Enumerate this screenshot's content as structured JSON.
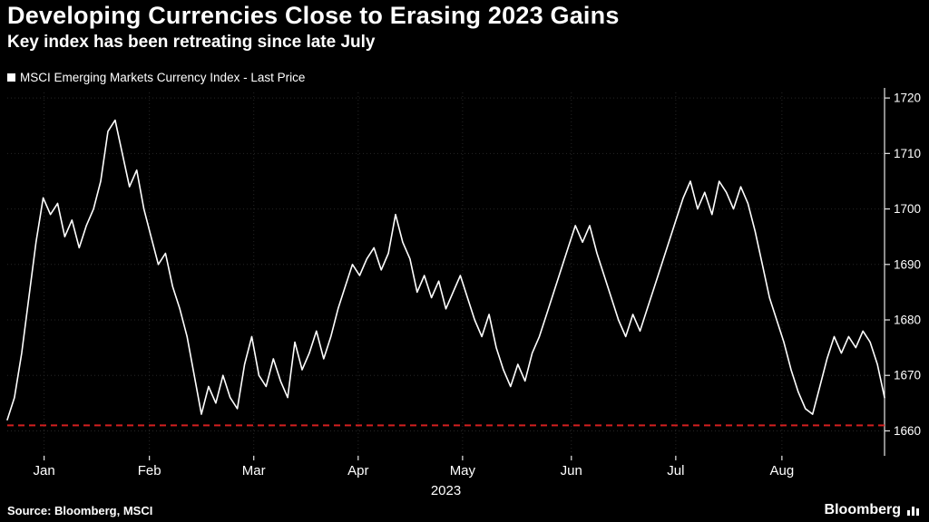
{
  "header": {
    "title": "Developing Currencies Close to Erasing 2023 Gains",
    "subtitle": "Key index has been retreating since late July"
  },
  "legend": {
    "label": "MSCI Emerging Markets Currency Index - Last Price"
  },
  "footer": {
    "source": "Source: Bloomberg, MSCI",
    "brand": "Bloomberg"
  },
  "chart_data": {
    "type": "line",
    "title": "Developing Currencies Close to Erasing 2023 Gains",
    "subtitle": "Key index has been retreating since late July",
    "xlabel": "2023",
    "ylabel": "",
    "year_label": "2023",
    "ylim": [
      1655.5,
      1721
    ],
    "yticks": [
      1660,
      1670,
      1680,
      1690,
      1700,
      1710,
      1720
    ],
    "xticks": [
      {
        "label": "Jan",
        "pos": 0.042
      },
      {
        "label": "Feb",
        "pos": 0.162
      },
      {
        "label": "Mar",
        "pos": 0.281
      },
      {
        "label": "Apr",
        "pos": 0.4
      },
      {
        "label": "May",
        "pos": 0.519
      },
      {
        "label": "Jun",
        "pos": 0.643
      },
      {
        "label": "Jul",
        "pos": 0.762
      },
      {
        "label": "Aug",
        "pos": 0.883
      }
    ],
    "reference_line": 1661,
    "legend_position": "top-left",
    "grid": true,
    "colors": {
      "background": "#000000",
      "line": "#ffffff",
      "reference": "#d21f1f",
      "axis": "#e8e8e8",
      "text": "#ffffff",
      "grid": "#262626"
    },
    "series": [
      {
        "name": "MSCI Emerging Markets Currency Index - Last Price",
        "values": [
          1662,
          1666,
          1674,
          1684,
          1694,
          1702,
          1699,
          1701,
          1695,
          1698,
          1693,
          1697,
          1700,
          1705,
          1714,
          1716,
          1710,
          1704,
          1707,
          1700,
          1695,
          1690,
          1692,
          1686,
          1682,
          1677,
          1670,
          1663,
          1668,
          1665,
          1670,
          1666,
          1664,
          1672,
          1677,
          1670,
          1668,
          1673,
          1669,
          1666,
          1676,
          1671,
          1674,
          1678,
          1673,
          1677,
          1682,
          1686,
          1690,
          1688,
          1691,
          1693,
          1689,
          1692,
          1699,
          1694,
          1691,
          1685,
          1688,
          1684,
          1687,
          1682,
          1685,
          1688,
          1684,
          1680,
          1677,
          1681,
          1675,
          1671,
          1668,
          1672,
          1669,
          1674,
          1677,
          1681,
          1685,
          1689,
          1693,
          1697,
          1694,
          1697,
          1692,
          1688,
          1684,
          1680,
          1677,
          1681,
          1678,
          1682,
          1686,
          1690,
          1694,
          1698,
          1702,
          1705,
          1700,
          1703,
          1699,
          1705,
          1703,
          1700,
          1704,
          1701,
          1696,
          1690,
          1684,
          1680,
          1676,
          1671,
          1667,
          1664,
          1663,
          1668,
          1673,
          1677,
          1674,
          1677,
          1675,
          1678,
          1676,
          1672,
          1666
        ]
      }
    ]
  }
}
